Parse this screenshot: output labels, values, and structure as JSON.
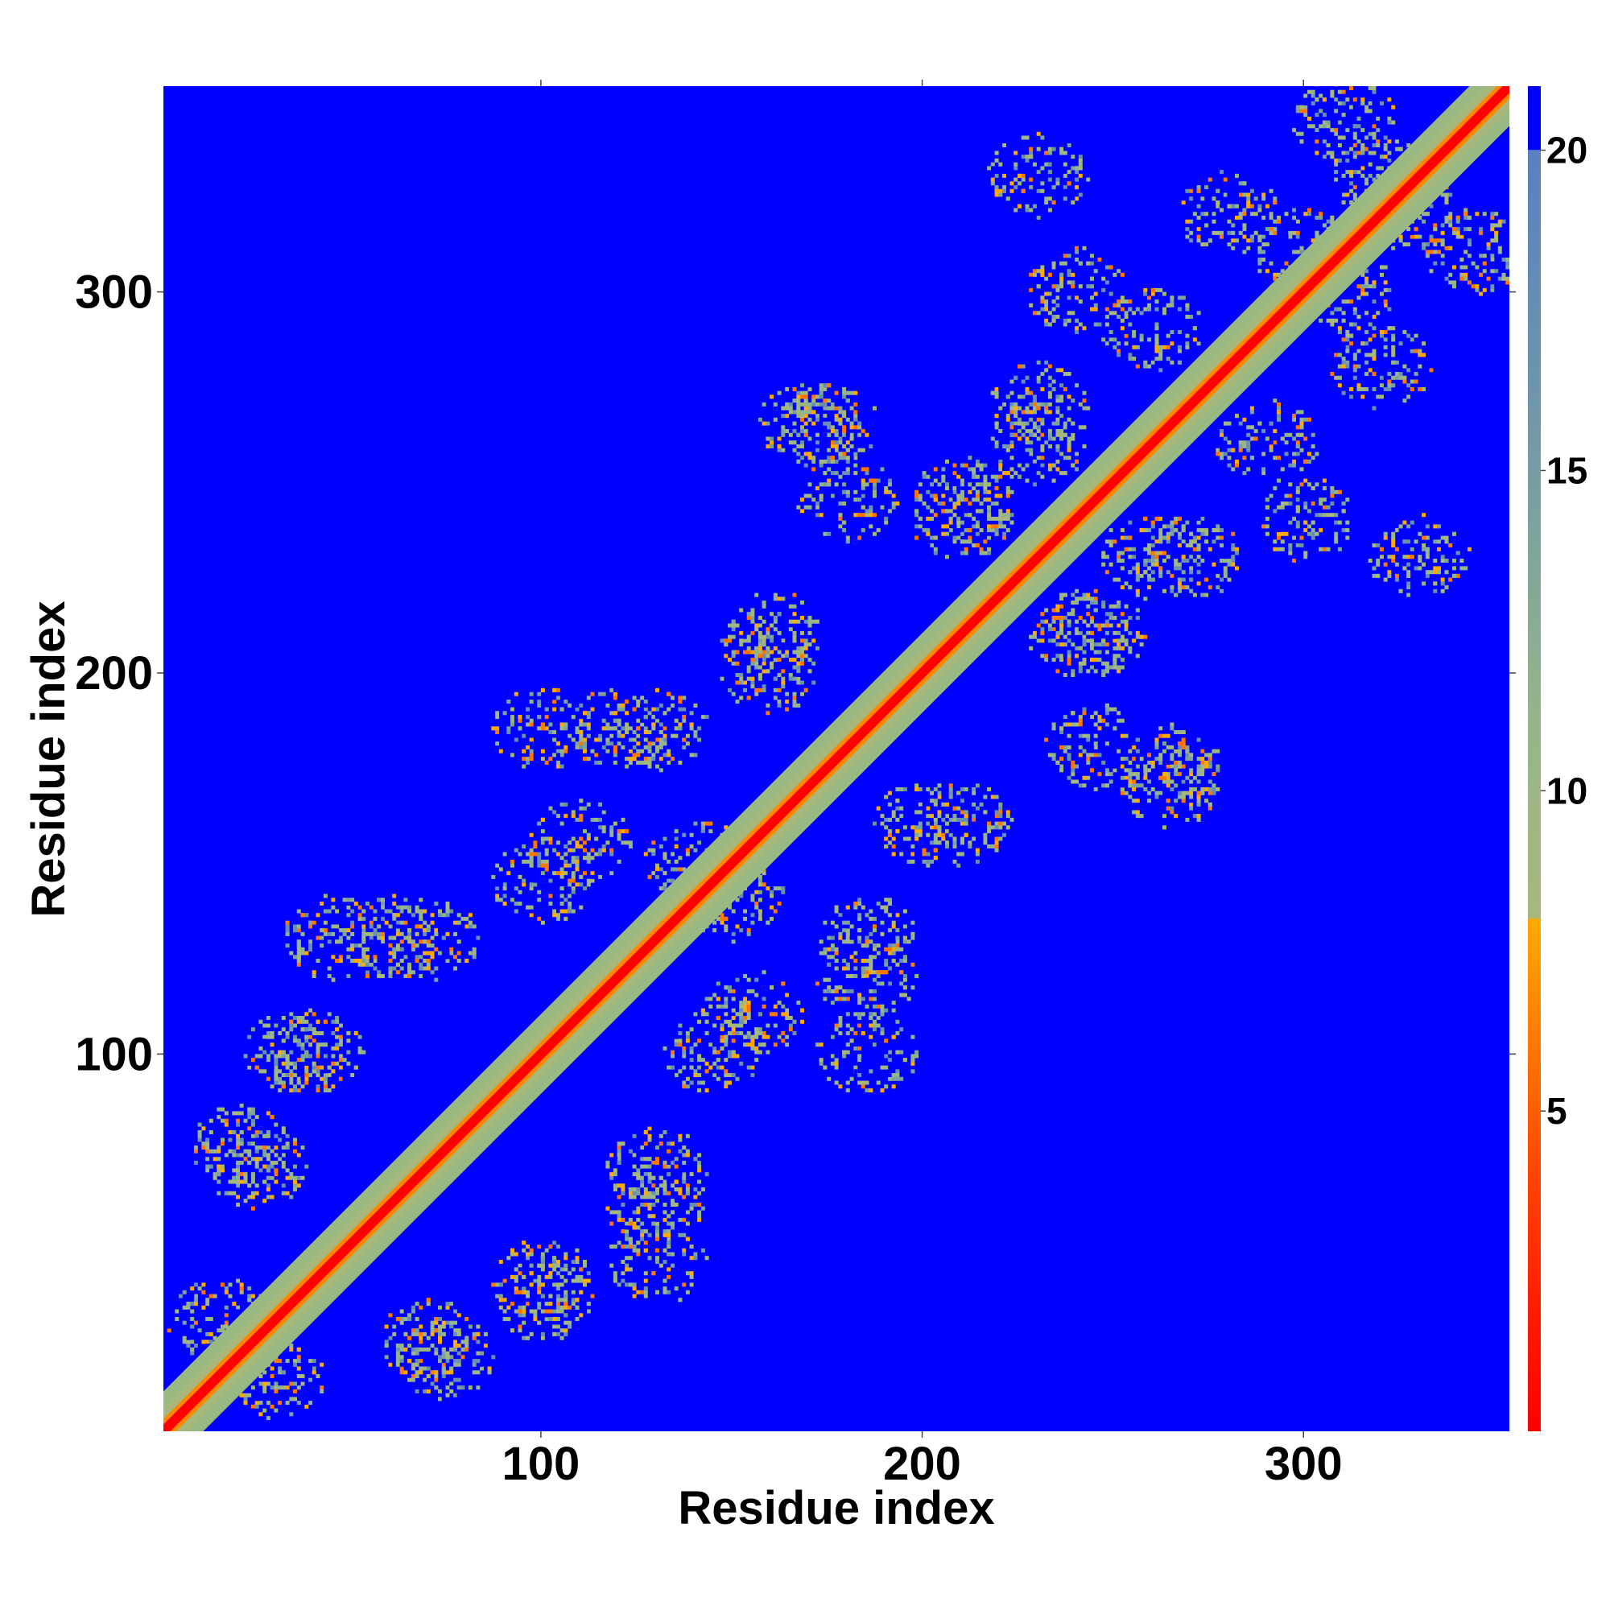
{
  "chart_data": {
    "type": "heatmap",
    "title": "",
    "xlabel": "Residue index",
    "ylabel": "Residue index",
    "xlim": [
      1,
      354
    ],
    "ylim": [
      1,
      354
    ],
    "x_ticks": [
      100,
      200,
      300
    ],
    "y_ticks": [
      100,
      200,
      300
    ],
    "colorbar": {
      "min": 0,
      "max": 21,
      "ticks": [
        5,
        10,
        15,
        20
      ],
      "placement": "right",
      "stops": [
        {
          "value": 0,
          "color": "#ff0000"
        },
        {
          "value": 2,
          "color": "#ff1e00"
        },
        {
          "value": 4,
          "color": "#ff4400"
        },
        {
          "value": 6,
          "color": "#ff7700"
        },
        {
          "value": 8,
          "color": "#ffaa00"
        },
        {
          "value": 8.01,
          "color": "#a6b87c"
        },
        {
          "value": 11,
          "color": "#97b58a"
        },
        {
          "value": 14,
          "color": "#7ea39c"
        },
        {
          "value": 17,
          "color": "#6a90b0"
        },
        {
          "value": 20,
          "color": "#5b7fc0"
        },
        {
          "value": 20.01,
          "color": "#0000ff"
        },
        {
          "value": 21,
          "color": "#0000ff"
        }
      ]
    },
    "background_color": "#0000ff",
    "diagonal_band": {
      "core_color": "#ff0000",
      "inner_color": "#ff8800",
      "outer_color": "#9ab882"
    },
    "contact_clusters": [
      {
        "x": 25,
        "y": 70
      },
      {
        "x": 35,
        "y": 100
      },
      {
        "x": 15,
        "y": 30
      },
      {
        "x": 70,
        "y": 130
      },
      {
        "x": 45,
        "y": 130
      },
      {
        "x": 110,
        "y": 155
      },
      {
        "x": 130,
        "y": 60
      },
      {
        "x": 100,
        "y": 40
      },
      {
        "x": 75,
        "y": 20
      },
      {
        "x": 145,
        "y": 100
      },
      {
        "x": 140,
        "y": 150
      },
      {
        "x": 185,
        "y": 100
      },
      {
        "x": 120,
        "y": 185
      },
      {
        "x": 160,
        "y": 200
      },
      {
        "x": 185,
        "y": 130
      },
      {
        "x": 210,
        "y": 160
      },
      {
        "x": 245,
        "y": 180
      },
      {
        "x": 265,
        "y": 170
      },
      {
        "x": 240,
        "y": 210
      },
      {
        "x": 210,
        "y": 245
      },
      {
        "x": 175,
        "y": 265
      },
      {
        "x": 230,
        "y": 270
      },
      {
        "x": 260,
        "y": 230
      },
      {
        "x": 290,
        "y": 260
      },
      {
        "x": 310,
        "y": 300
      },
      {
        "x": 240,
        "y": 300
      },
      {
        "x": 280,
        "y": 320
      },
      {
        "x": 330,
        "y": 320
      },
      {
        "x": 230,
        "y": 330
      },
      {
        "x": 310,
        "y": 345
      }
    ]
  }
}
